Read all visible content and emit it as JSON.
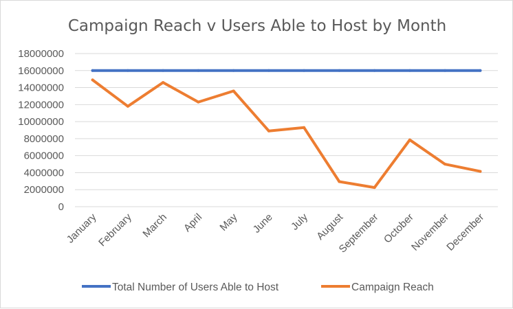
{
  "chart_data": {
    "type": "line",
    "title": "Campaign Reach v Users Able to Host by Month",
    "xlabel": "",
    "ylabel": "",
    "categories": [
      "January",
      "February",
      "March",
      "April",
      "May",
      "June",
      "July",
      "August",
      "September",
      "October",
      "November",
      "December"
    ],
    "ylim": [
      0,
      18000000
    ],
    "yticks": [
      "0",
      "2000000",
      "4000000",
      "6000000",
      "8000000",
      "10000000",
      "12000000",
      "14000000",
      "16000000",
      "18000000"
    ],
    "grid": true,
    "legend_position": "bottom",
    "series": [
      {
        "name": "Total Number of Users Able to Host",
        "color": "#4472c4",
        "values": [
          16000000,
          16000000,
          16000000,
          16000000,
          16000000,
          16000000,
          16000000,
          16000000,
          16000000,
          16000000,
          16000000,
          16000000
        ]
      },
      {
        "name": "Campaign Reach",
        "color": "#ed7d31",
        "values": [
          14900000,
          11800000,
          14600000,
          12300000,
          13600000,
          8900000,
          9300000,
          2950000,
          2250000,
          7850000,
          5000000,
          4150000
        ]
      }
    ]
  }
}
